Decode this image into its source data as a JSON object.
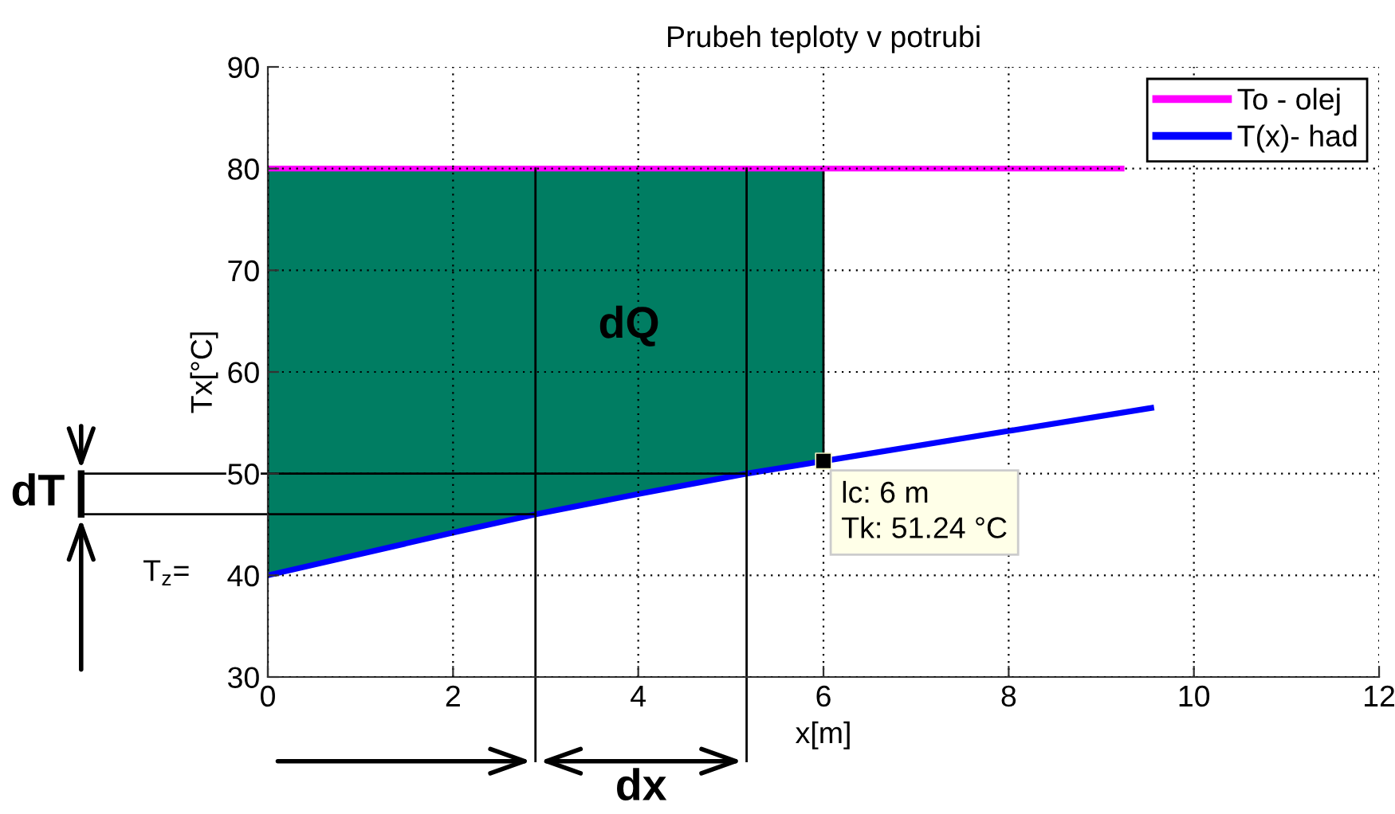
{
  "chart_data": {
    "type": "line",
    "title": "Prubeh teploty v potrubi",
    "xlabel": "x[m]",
    "ylabel": "Tx[°C]",
    "series": [
      {
        "name": "To - olej",
        "color": "#ff00ff",
        "x": [
          0,
          9.25
        ],
        "values": [
          80,
          80
        ]
      },
      {
        "name": "T(x)- had",
        "color": "#0000ff",
        "x": [
          0,
          2,
          2.89,
          4,
          5.17,
          6,
          8,
          9.57
        ],
        "values": [
          40,
          44.2,
          46,
          48,
          50,
          51.24,
          54.2,
          56.5
        ]
      },
      {
        "type": "area",
        "color": "#007d62",
        "x": [
          0,
          2,
          2.89,
          4,
          5.17,
          6
        ],
        "values": [
          80,
          80,
          80,
          80,
          80,
          80
        ]
      },
      {
        "type": "scatter",
        "color": "#000000",
        "marker": "square",
        "x": [
          6
        ],
        "values": [
          51.24
        ]
      }
    ],
    "xlim": [
      0,
      12
    ],
    "ylim": [
      30,
      90
    ],
    "xticks": [
      0,
      2,
      4,
      6,
      8,
      10,
      12
    ],
    "yticks": [
      30,
      40,
      50,
      60,
      70,
      80,
      90
    ],
    "grid": true,
    "legend": "top right",
    "line_style": "solid",
    "ref_lines": [
      {
        "axis": "x",
        "value": 2.89,
        "color": "#000000"
      },
      {
        "axis": "x",
        "value": 5.17,
        "color": "#000000"
      },
      {
        "axis": "y",
        "value": 46,
        "color": "#000000"
      },
      {
        "axis": "y",
        "value": 50,
        "color": "#000000"
      }
    ],
    "annotations": [
      {
        "text": "lc: 6 m\nTk: 51.24 °C",
        "x": 6,
        "y": 51.24
      },
      {
        "text": "T$_{z}$=",
        "x": 0,
        "y": 40
      },
      "dQ",
      "dT",
      "dx"
    ]
  }
}
